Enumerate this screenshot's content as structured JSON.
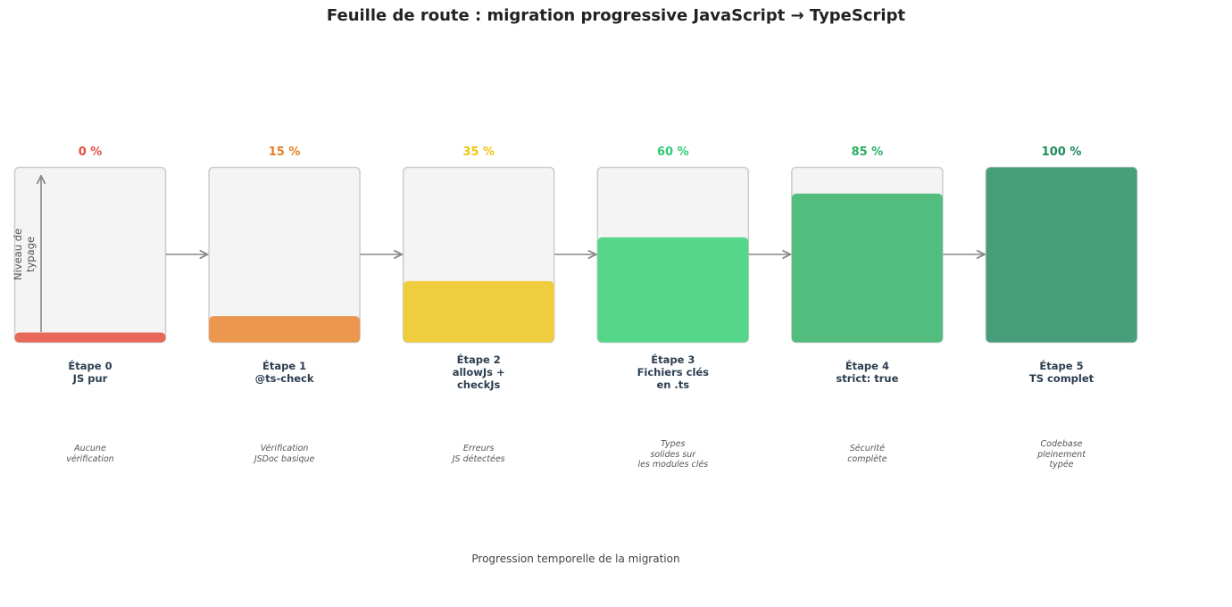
{
  "title": "Feuille de route : migration progressive JavaScript → TypeScript",
  "x_axis_label": "Progression temporelle de la migration",
  "y_axis_label": "Niveau de\ntypage",
  "colors": {
    "box_bg": "#f4f4f4",
    "box_border": "#cccccc",
    "arrow": "#888888",
    "step_text": "#2c3e50"
  },
  "steps": [
    {
      "id": 0,
      "name": "Étape 0\nJS pur",
      "description": "Aucune\nvérification",
      "percent": 0,
      "percent_label": "0 %",
      "fill_color": "#e8695a",
      "label_color": "#e74c3c"
    },
    {
      "id": 1,
      "name": "Étape 1\n@ts-check",
      "description": "Vérification\nJSDoc basique",
      "percent": 15,
      "percent_label": "15 %",
      "fill_color": "#eb974e",
      "label_color": "#e67e22"
    },
    {
      "id": 2,
      "name": "Étape 2\nallowJs +\ncheckJs",
      "description": "Erreurs\nJS détectées",
      "percent": 35,
      "percent_label": "35 %",
      "fill_color": "#f0cd3e",
      "label_color": "#f1c40f"
    },
    {
      "id": 3,
      "name": "Étape 3\nFichiers clés\nen .ts",
      "description": "Types\nsolides sur\nles modules clés",
      "percent": 60,
      "percent_label": "60 %",
      "fill_color": "#56d68a",
      "label_color": "#2ecc71"
    },
    {
      "id": 4,
      "name": "Étape 4\nstrict: true",
      "description": "Sécurité\ncomplète",
      "percent": 85,
      "percent_label": "85 %",
      "fill_color": "#52bd7e",
      "label_color": "#27ae60"
    },
    {
      "id": 5,
      "name": "Étape 5\nTS complet",
      "description": "Codebase\npleinement\ntypée",
      "percent": 100,
      "percent_label": "100 %",
      "fill_color": "#479e7a",
      "label_color": "#1e8a5a"
    }
  ]
}
